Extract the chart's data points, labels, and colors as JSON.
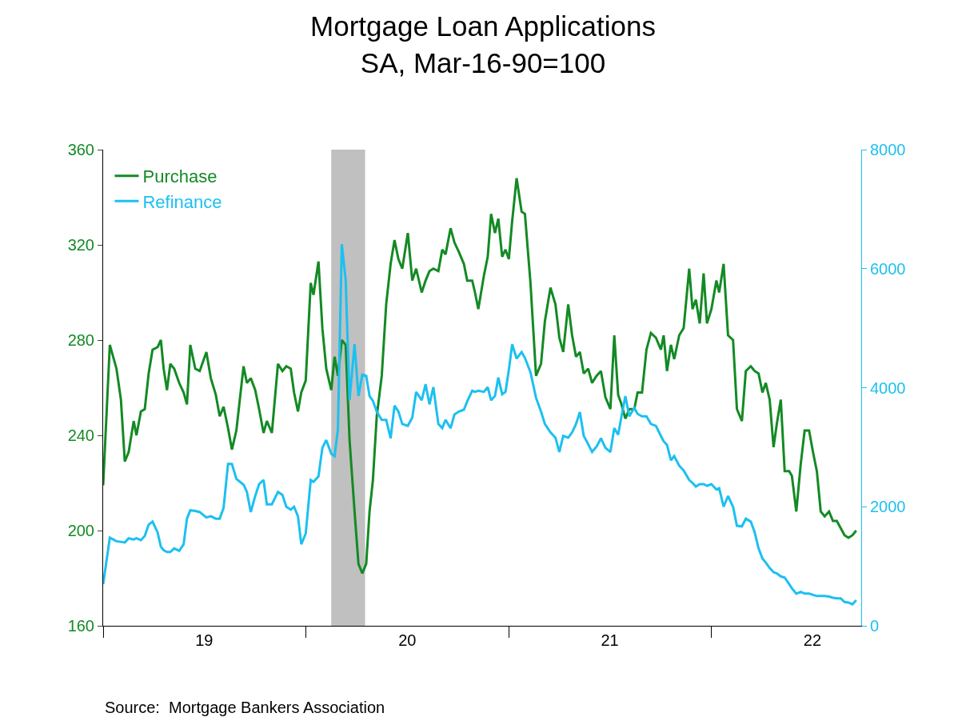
{
  "chart_data": {
    "type": "line",
    "title": "Mortgage Loan Applications",
    "subtitle": "SA, Mar-16-90=100",
    "x": [
      "2019-01-01",
      "2019-01-13",
      "2019-01-25",
      "2019-02-02",
      "2019-02-09",
      "2019-02-16",
      "2019-02-25",
      "2019-03-02",
      "2019-03-10",
      "2019-03-17",
      "2019-03-24",
      "2019-03-31",
      "2019-04-09",
      "2019-04-15",
      "2019-04-20",
      "2019-04-26",
      "2019-05-02",
      "2019-05-09",
      "2019-05-18",
      "2019-05-26",
      "2019-06-01",
      "2019-06-07",
      "2019-06-16",
      "2019-06-24",
      "2019-07-06",
      "2019-07-14",
      "2019-07-23",
      "2019-07-30",
      "2019-08-06",
      "2019-08-14",
      "2019-08-21",
      "2019-08-29",
      "2019-09-11",
      "2019-09-17",
      "2019-09-24",
      "2019-10-02",
      "2019-10-09",
      "2019-10-17",
      "2019-10-23",
      "2019-11-01",
      "2019-11-12",
      "2019-11-20",
      "2019-11-27",
      "2019-12-05",
      "2019-12-11",
      "2019-12-18",
      "2019-12-24",
      "2020-01-01",
      "2020-01-10",
      "2020-01-15",
      "2020-01-24",
      "2020-01-31",
      "2020-02-07",
      "2020-02-16",
      "2020-02-22",
      "2020-02-28",
      "2020-03-06",
      "2020-03-13",
      "2020-03-20",
      "2020-03-29",
      "2020-04-05",
      "2020-04-12",
      "2020-04-19",
      "2020-04-25",
      "2020-05-01",
      "2020-05-08",
      "2020-05-17",
      "2020-05-25",
      "2020-06-02",
      "2020-06-09",
      "2020-06-16",
      "2020-06-23",
      "2020-07-03",
      "2020-07-11",
      "2020-07-18",
      "2020-07-28",
      "2020-08-04",
      "2020-08-11",
      "2020-08-18",
      "2020-08-27",
      "2020-09-03",
      "2020-09-09",
      "2020-09-18",
      "2020-09-25",
      "2020-10-03",
      "2020-10-12",
      "2020-10-18",
      "2020-10-27",
      "2020-11-01",
      "2020-11-07",
      "2020-11-17",
      "2020-11-24",
      "2020-11-30",
      "2020-12-07",
      "2020-12-13",
      "2020-12-20",
      "2020-12-26",
      "2021-01-01",
      "2021-01-07",
      "2021-01-15",
      "2021-01-24",
      "2021-01-30",
      "2021-02-09",
      "2021-02-19",
      "2021-02-28",
      "2021-03-07",
      "2021-03-17",
      "2021-03-26",
      "2021-04-02",
      "2021-04-09",
      "2021-04-18",
      "2021-04-25",
      "2021-05-02",
      "2021-05-09",
      "2021-05-16",
      "2021-05-24",
      "2021-05-31",
      "2021-06-08",
      "2021-06-16",
      "2021-06-24",
      "2021-07-03",
      "2021-07-10",
      "2021-07-17",
      "2021-07-23",
      "2021-07-30",
      "2021-08-06",
      "2021-08-15",
      "2021-08-21",
      "2021-08-29",
      "2021-09-06",
      "2021-09-14",
      "2021-09-23",
      "2021-10-02",
      "2021-10-07",
      "2021-10-13",
      "2021-10-20",
      "2021-10-26",
      "2021-11-04",
      "2021-11-12",
      "2021-11-22",
      "2021-11-28",
      "2021-12-04",
      "2021-12-11",
      "2021-12-18",
      "2021-12-24",
      "2022-01-01",
      "2022-01-10",
      "2022-01-15",
      "2022-01-23",
      "2022-01-31",
      "2022-02-09",
      "2022-02-16",
      "2022-02-25",
      "2022-03-04",
      "2022-03-13",
      "2022-03-20",
      "2022-03-27",
      "2022-04-03",
      "2022-04-09",
      "2022-04-16",
      "2022-04-23",
      "2022-04-29",
      "2022-05-06",
      "2022-05-13",
      "2022-05-21",
      "2022-05-26",
      "2022-06-03",
      "2022-06-11",
      "2022-06-18",
      "2022-06-26",
      "2022-07-03",
      "2022-07-10",
      "2022-07-17",
      "2022-07-24",
      "2022-08-01",
      "2022-08-08",
      "2022-08-15",
      "2022-08-22",
      "2022-08-29",
      "2022-09-05",
      "2022-09-12",
      "2022-09-19"
    ],
    "series": [
      {
        "name": "Purchase",
        "color": "#138a24",
        "values": [
          219,
          278,
          268,
          255,
          229,
          233,
          246,
          240,
          250,
          251,
          266,
          276,
          277,
          280,
          268,
          259,
          270,
          268,
          262,
          258,
          253,
          278,
          268,
          267,
          275,
          264,
          257,
          248,
          252,
          243,
          234,
          242,
          269,
          262,
          264,
          259,
          251,
          241,
          246,
          241,
          270,
          267,
          269,
          268,
          258,
          250,
          258,
          263,
          304,
          299,
          313,
          285,
          268,
          259,
          273,
          265,
          280,
          278,
          238,
          208,
          186,
          182,
          186,
          208,
          221,
          248,
          265,
          295,
          312,
          322,
          314,
          310,
          325,
          305,
          310,
          300,
          305,
          309,
          310,
          309,
          318,
          316,
          327,
          321,
          317,
          312,
          305,
          305,
          300,
          293,
          307,
          315,
          333,
          325,
          331,
          315,
          318,
          314,
          330,
          348,
          334,
          333,
          304,
          265,
          270,
          288,
          302,
          295,
          281,
          275,
          295,
          282,
          273,
          275,
          266,
          268,
          262,
          265,
          267,
          256,
          251,
          282,
          257,
          253,
          247,
          251,
          251,
          258,
          258,
          276,
          283,
          281,
          276,
          282,
          267,
          278,
          272,
          282,
          285,
          310,
          293,
          297,
          287,
          308,
          287,
          293,
          305,
          300,
          312,
          282,
          280,
          251,
          246,
          267,
          269,
          267,
          266,
          258,
          262,
          255,
          235,
          245,
          255,
          225,
          225,
          223,
          208,
          228,
          242,
          242,
          233,
          225,
          208,
          206,
          208,
          204,
          204,
          201,
          198,
          197,
          198,
          200
        ]
      },
      {
        "name": "Refinance",
        "color": "#1cc0f0",
        "axis": "y2",
        "values": [
          700,
          1480,
          1420,
          1410,
          1400,
          1470,
          1450,
          1470,
          1440,
          1510,
          1700,
          1750,
          1570,
          1330,
          1270,
          1240,
          1240,
          1300,
          1260,
          1370,
          1800,
          1940,
          1930,
          1910,
          1820,
          1840,
          1800,
          1800,
          1980,
          2720,
          2720,
          2470,
          2370,
          2250,
          1910,
          2180,
          2380,
          2450,
          2040,
          2040,
          2250,
          2200,
          2000,
          1950,
          2000,
          1840,
          1370,
          1550,
          2450,
          2420,
          2510,
          2990,
          3120,
          2890,
          2850,
          3300,
          6410,
          5810,
          3790,
          4730,
          3860,
          4220,
          4200,
          3860,
          3780,
          3600,
          3460,
          3460,
          3150,
          3700,
          3600,
          3390,
          3360,
          3500,
          3930,
          3790,
          4060,
          3720,
          4010,
          3390,
          3320,
          3460,
          3320,
          3550,
          3600,
          3630,
          3770,
          3950,
          3930,
          3950,
          3930,
          4010,
          3790,
          3860,
          4170,
          3890,
          3930,
          4300,
          4730,
          4490,
          4600,
          4500,
          4260,
          3830,
          3600,
          3390,
          3250,
          3160,
          2920,
          3190,
          3160,
          3250,
          3390,
          3590,
          3190,
          3050,
          2920,
          3010,
          3150,
          2990,
          2920,
          3320,
          3210,
          3520,
          3860,
          3520,
          3660,
          3560,
          3520,
          3520,
          3390,
          3360,
          3190,
          3100,
          3040,
          2780,
          2850,
          2690,
          2610,
          2450,
          2400,
          2340,
          2380,
          2380,
          2350,
          2380,
          2290,
          2310,
          2000,
          2180,
          2000,
          1680,
          1670,
          1800,
          1750,
          1570,
          1300,
          1130,
          1060,
          970,
          900,
          880,
          830,
          810,
          700,
          630,
          540,
          570,
          540,
          540,
          520,
          500,
          500,
          500,
          490,
          470,
          460,
          460,
          400,
          390,
          360,
          430
        ]
      }
    ],
    "xlim": [
      "2019-01-01",
      "2022-09-28"
    ],
    "xticks": [
      {
        "value": "2019-01-01",
        "label": null
      },
      {
        "value": "2019-07-02",
        "label": "19"
      },
      {
        "value": "2020-01-01",
        "label": null
      },
      {
        "value": "2020-07-02",
        "label": "20"
      },
      {
        "value": "2021-01-01",
        "label": null
      },
      {
        "value": "2021-07-02",
        "label": "21"
      },
      {
        "value": "2022-01-01",
        "label": null
      },
      {
        "value": "2022-07-02",
        "label": "22"
      }
    ],
    "ylim": [
      160,
      360
    ],
    "yticks": [
      160,
      200,
      240,
      280,
      320,
      360
    ],
    "y2lim": [
      0,
      8000
    ],
    "y2ticks": [
      0,
      2000,
      4000,
      6000,
      8000
    ],
    "bands": [
      {
        "axis": "x",
        "from": "2020-02-16",
        "to": "2020-04-17",
        "label": null,
        "color": "#c0c0c0"
      }
    ],
    "annotations": [
      "Source:  Mortgage Bankers Association"
    ],
    "legend": "top left",
    "grid": false,
    "marker": "none",
    "line_style": "solid"
  }
}
